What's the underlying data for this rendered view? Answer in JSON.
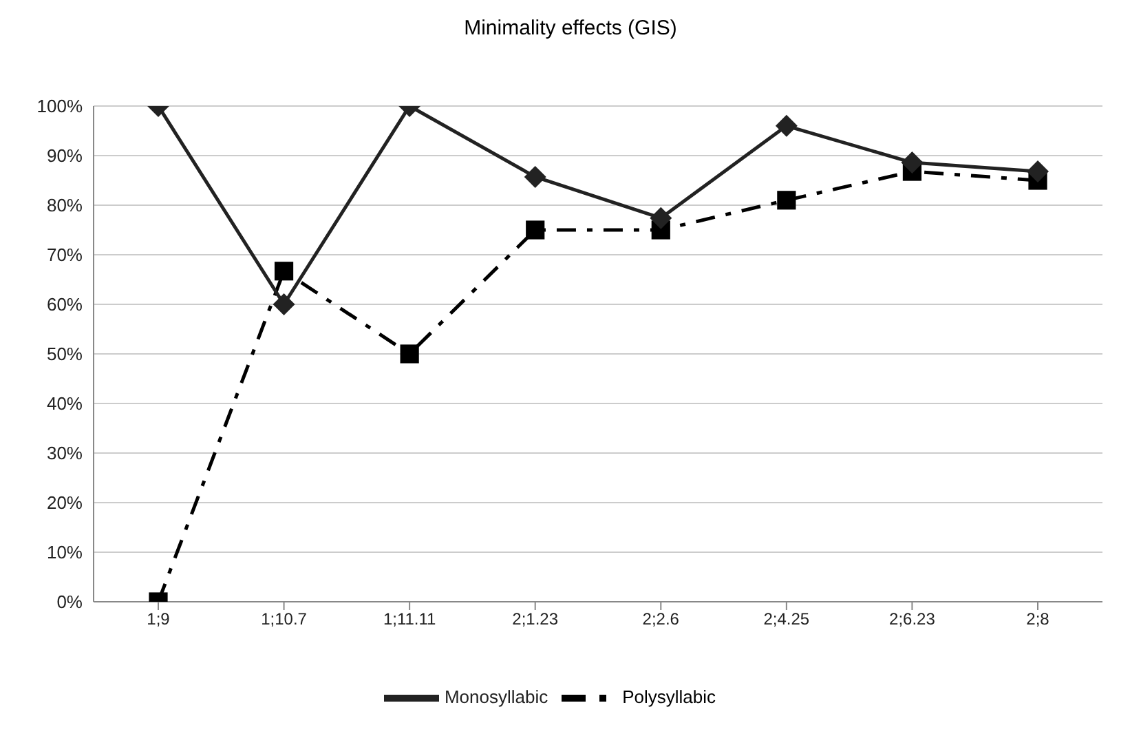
{
  "chart_data": {
    "type": "line",
    "title": "Minimality effects (GIS)",
    "categories": [
      "1;9",
      "1;10.7",
      "1;11.11",
      "2;1.23",
      "2;2.6",
      "2;4.25",
      "2;6.23",
      "2;8"
    ],
    "series": [
      {
        "name": "Monosyllabic",
        "color": "#222222",
        "marker": "diamond",
        "line_style": "solid",
        "values": [
          100,
          60,
          100,
          85.7,
          77.4,
          96,
          88.6,
          86.8
        ]
      },
      {
        "name": "Polysyllabic",
        "color": "#000000",
        "marker": "square",
        "line_style": "dashdot",
        "values": [
          0,
          66.7,
          50,
          75,
          75,
          81,
          86.8,
          85
        ]
      }
    ],
    "ylim": [
      0,
      100
    ],
    "yticks": [
      {
        "value": 0,
        "label": "0%"
      },
      {
        "value": 10,
        "label": "10%"
      },
      {
        "value": 20,
        "label": "20%"
      },
      {
        "value": 30,
        "label": "30%"
      },
      {
        "value": 40,
        "label": "40%"
      },
      {
        "value": 50,
        "label": "50%"
      },
      {
        "value": 60,
        "label": "60%"
      },
      {
        "value": 70,
        "label": "70%"
      },
      {
        "value": 80,
        "label": "80%"
      },
      {
        "value": 90,
        "label": "90%"
      },
      {
        "value": 100,
        "label": "100%"
      }
    ],
    "grid": "y",
    "legend": "bottom"
  }
}
